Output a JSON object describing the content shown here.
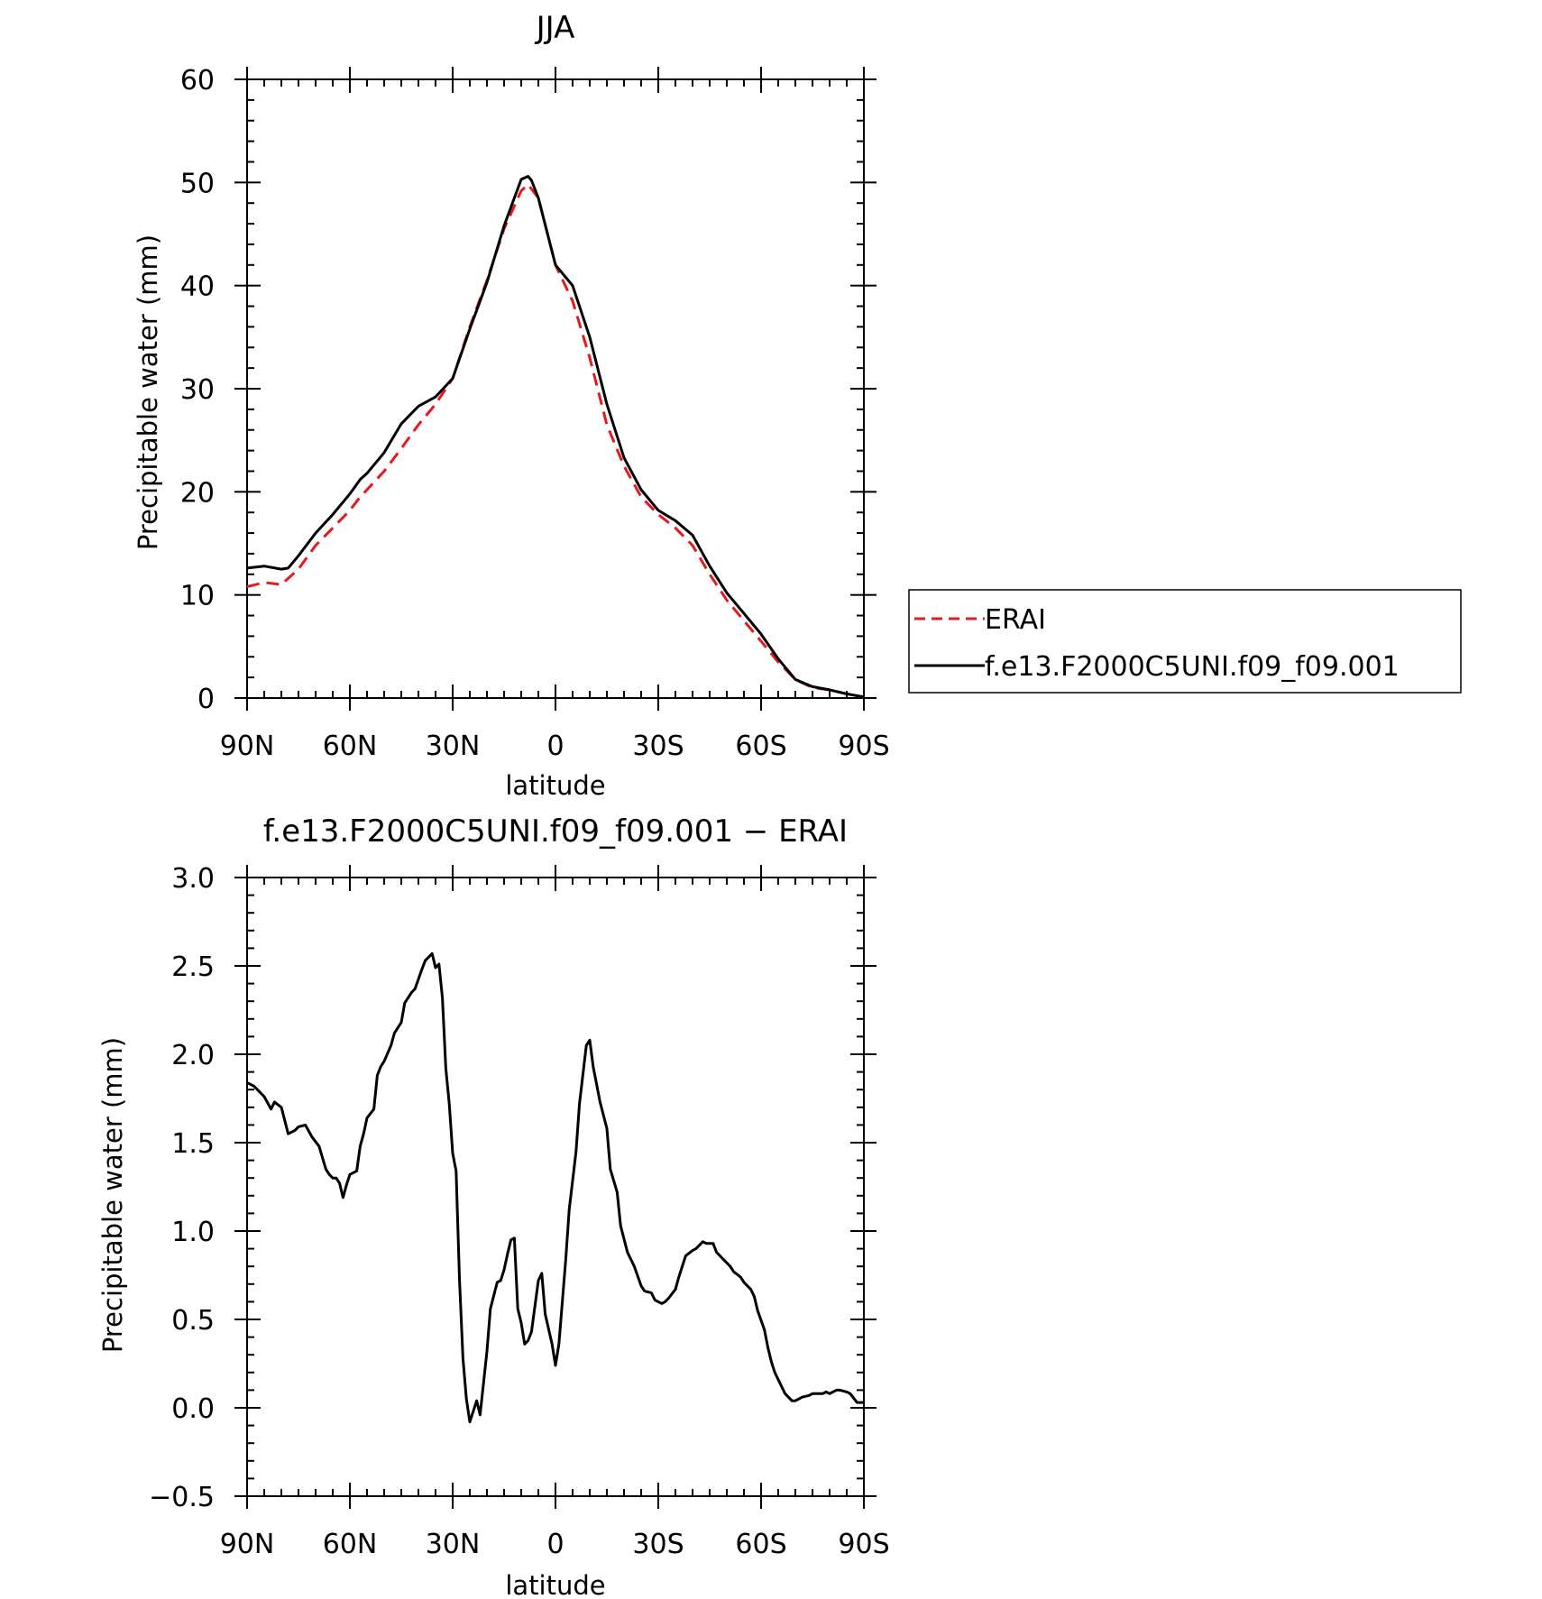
{
  "chart_data": [
    {
      "type": "line",
      "title": "JJA",
      "xlabel": "latitude",
      "ylabel": "Precipitable water (mm)",
      "xlim": [
        90,
        -90
      ],
      "ylim": [
        0,
        60
      ],
      "x_ticks": [
        90,
        60,
        30,
        0,
        -30,
        -60,
        -90
      ],
      "x_tick_labels": [
        "90N",
        "60N",
        "30N",
        "0",
        "30S",
        "60S",
        "90S"
      ],
      "y_ticks": [
        0,
        10,
        20,
        30,
        40,
        50,
        60
      ],
      "y_tick_labels": [
        "0",
        "10",
        "20",
        "30",
        "40",
        "50",
        "60"
      ],
      "legend_position": "outside-right",
      "series": [
        {
          "name": "ERAI",
          "color": "#e41a1c",
          "dash": "dashed",
          "x": [
            90,
            85,
            80,
            75,
            70,
            65,
            60,
            57,
            55,
            50,
            45,
            40,
            35,
            30,
            25,
            20,
            15,
            10,
            8,
            5,
            0,
            -5,
            -10,
            -15,
            -20,
            -25,
            -30,
            -35,
            -40,
            -45,
            -50,
            -55,
            -60,
            -65,
            -70,
            -75,
            -80,
            -85,
            -90
          ],
          "y": [
            10.8,
            11.2,
            11.0,
            12.5,
            14.8,
            16.5,
            18.2,
            19.5,
            20.2,
            22.0,
            24.2,
            26.5,
            28.5,
            31.0,
            36.0,
            40.5,
            45.5,
            49.2,
            49.8,
            48.5,
            42.0,
            38.5,
            33.0,
            26.5,
            22.5,
            19.5,
            17.8,
            16.5,
            14.8,
            12.0,
            9.5,
            7.5,
            5.5,
            3.5,
            1.8,
            1.0,
            0.8,
            0.4,
            0.1
          ]
        },
        {
          "name": "f.e13.F2000C5UNI.f09_f09.001",
          "color": "#000000",
          "dash": "solid",
          "x": [
            90,
            85,
            80,
            78,
            75,
            70,
            65,
            60,
            57,
            55,
            50,
            45,
            40,
            35,
            30,
            25,
            20,
            15,
            10,
            8,
            7,
            5,
            0,
            -5,
            -10,
            -15,
            -20,
            -25,
            -30,
            -35,
            -40,
            -45,
            -50,
            -55,
            -60,
            -65,
            -70,
            -75,
            -80,
            -85,
            -90
          ],
          "y": [
            12.6,
            12.8,
            12.5,
            12.6,
            13.8,
            16.0,
            17.8,
            19.8,
            21.2,
            21.8,
            23.8,
            26.6,
            28.3,
            29.2,
            31.0,
            35.8,
            40.3,
            45.8,
            50.3,
            50.6,
            50.2,
            48.5,
            42.0,
            40.0,
            35.0,
            28.5,
            23.3,
            20.2,
            18.2,
            17.2,
            15.8,
            12.8,
            10.2,
            8.2,
            6.2,
            3.8,
            1.8,
            1.1,
            0.8,
            0.4,
            0.1
          ]
        }
      ]
    },
    {
      "type": "line",
      "title": "f.e13.F2000C5UNI.f09_f09.001 − ERAI",
      "xlabel": "latitude",
      "ylabel": "Precipitable water (mm)",
      "xlim": [
        90,
        -90
      ],
      "ylim": [
        -0.5,
        3.0
      ],
      "x_ticks": [
        90,
        60,
        30,
        0,
        -30,
        -60,
        -90
      ],
      "x_tick_labels": [
        "90N",
        "60N",
        "30N",
        "0",
        "30S",
        "60S",
        "90S"
      ],
      "y_ticks": [
        -0.5,
        0.0,
        0.5,
        1.0,
        1.5,
        2.0,
        2.5,
        3.0
      ],
      "y_tick_labels": [
        "−0.5",
        "0.0",
        "0.5",
        "1.0",
        "1.5",
        "2.0",
        "2.5",
        "3.0"
      ],
      "series": [
        {
          "color": "#000000",
          "dash": "solid",
          "x": [
            90,
            88,
            86,
            85,
            83,
            82,
            80,
            78,
            76,
            75,
            73,
            71,
            69,
            67,
            66,
            65,
            64,
            63,
            62,
            61,
            60,
            58,
            57,
            56,
            55,
            53,
            52,
            51,
            50,
            48,
            47,
            45,
            44,
            42,
            41,
            39,
            38,
            36,
            35,
            34,
            33,
            32,
            31,
            30,
            29,
            28,
            27,
            26,
            25,
            23,
            22,
            20,
            19,
            17,
            16,
            15,
            14,
            13,
            12,
            11,
            10,
            9,
            8,
            7,
            5,
            4,
            3,
            1,
            0,
            -1,
            -3,
            -4,
            -6,
            -7,
            -9,
            -10,
            -11,
            -13,
            -15,
            -16,
            -18,
            -19,
            -21,
            -23,
            -25,
            -26,
            -28,
            -29,
            -31,
            -32,
            -33,
            -35,
            -36,
            -37,
            -38,
            -40,
            -41,
            -43,
            -44,
            -46,
            -47,
            -49,
            -51,
            -52,
            -54,
            -55,
            -57,
            -58,
            -59,
            -61,
            -62,
            -63,
            -64,
            -66,
            -67,
            -69,
            -70,
            -71,
            -72,
            -74,
            -75,
            -77,
            -78,
            -79,
            -80,
            -82,
            -83,
            -85,
            -86,
            -88,
            -90
          ],
          "y": [
            1.84,
            1.82,
            1.78,
            1.76,
            1.69,
            1.73,
            1.7,
            1.55,
            1.57,
            1.59,
            1.6,
            1.53,
            1.48,
            1.35,
            1.32,
            1.3,
            1.3,
            1.27,
            1.19,
            1.26,
            1.32,
            1.34,
            1.48,
            1.55,
            1.64,
            1.69,
            1.88,
            1.93,
            1.96,
            2.05,
            2.12,
            2.18,
            2.29,
            2.35,
            2.37,
            2.48,
            2.53,
            2.57,
            2.49,
            2.51,
            2.32,
            1.92,
            1.72,
            1.44,
            1.34,
            0.72,
            0.28,
            0.05,
            -0.08,
            0.04,
            -0.04,
            0.32,
            0.56,
            0.71,
            0.72,
            0.78,
            0.87,
            0.95,
            0.96,
            0.56,
            0.48,
            0.36,
            0.38,
            0.43,
            0.72,
            0.76,
            0.53,
            0.36,
            0.24,
            0.36,
            0.84,
            1.12,
            1.45,
            1.72,
            2.05,
            2.08,
            1.93,
            1.73,
            1.58,
            1.35,
            1.22,
            1.03,
            0.88,
            0.8,
            0.69,
            0.66,
            0.65,
            0.61,
            0.59,
            0.6,
            0.62,
            0.67,
            0.74,
            0.8,
            0.86,
            0.89,
            0.9,
            0.94,
            0.93,
            0.93,
            0.88,
            0.84,
            0.8,
            0.77,
            0.74,
            0.71,
            0.67,
            0.63,
            0.55,
            0.44,
            0.34,
            0.26,
            0.2,
            0.12,
            0.08,
            0.04,
            0.04,
            0.05,
            0.06,
            0.07,
            0.08,
            0.08,
            0.08,
            0.09,
            0.08,
            0.1,
            0.1,
            0.09,
            0.08,
            0.03,
            0.03
          ]
        }
      ]
    }
  ]
}
